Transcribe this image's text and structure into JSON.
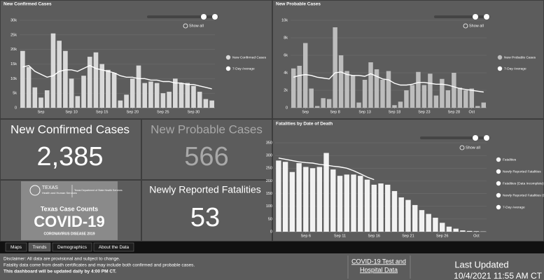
{
  "chart_data": [
    {
      "type": "bar",
      "title": "New Confirmed Cases",
      "zoom_label": "Show all",
      "categories": [
        null,
        null,
        null,
        "Sep",
        null,
        null,
        null,
        null,
        "Sep 10",
        null,
        null,
        null,
        null,
        "Sep 15",
        null,
        null,
        null,
        null,
        "Sep 20",
        null,
        null,
        null,
        null,
        "Sep 25",
        null,
        null,
        null,
        null,
        "Sep 30",
        null,
        null,
        null
      ],
      "series": [
        {
          "name": "New Confirmed Cases",
          "color": "#d9d9d9",
          "values": [
            19500,
            14000,
            7000,
            3500,
            6000,
            25500,
            23000,
            19500,
            10000,
            4000,
            11000,
            17500,
            19000,
            15000,
            13000,
            12000,
            2500,
            4500,
            10000,
            14500,
            8500,
            9000,
            8500,
            5000,
            5500,
            10000,
            8500,
            8500,
            7500,
            5500,
            3000,
            2500
          ]
        },
        {
          "name": "7-Day Average",
          "type": "line",
          "color": "#ffffff",
          "values": [
            14000,
            14500,
            12500,
            11500,
            10500,
            11000,
            12500,
            13000,
            13000,
            12500,
            13500,
            14500,
            13500,
            13000,
            12500,
            12000,
            11000,
            10500,
            10500,
            10000,
            10000,
            9500,
            9500,
            9000,
            9000,
            8500,
            8500,
            8000,
            8000,
            7500,
            7000,
            6500
          ]
        }
      ],
      "ylim": [
        0,
        30000
      ],
      "yticks": [
        0,
        {
          "value": 5000,
          "label": "5k"
        },
        {
          "value": 10000,
          "label": "10k"
        },
        {
          "value": 15000,
          "label": "15k"
        },
        {
          "value": 20000,
          "label": "20k"
        },
        {
          "value": 25000,
          "label": "25k"
        },
        {
          "value": 30000,
          "label": "30k"
        }
      ],
      "grid": true,
      "legend": "right"
    },
    {
      "type": "bar",
      "title": "New Probable Cases",
      "zoom_label": "Show all",
      "categories": [
        null,
        null,
        "Sep",
        null,
        null,
        null,
        null,
        "Sep 8",
        null,
        null,
        null,
        null,
        "Sep 13",
        null,
        null,
        null,
        null,
        "Sep 18",
        null,
        null,
        null,
        null,
        "Sep 23",
        null,
        null,
        null,
        null,
        "Sep 28",
        null,
        null,
        "Oct",
        null,
        null
      ],
      "series": [
        {
          "name": "New Probable Cases",
          "color": "#bdbdbd",
          "values": [
            4500,
            4800,
            7400,
            2200,
            200,
            1100,
            1000,
            9200,
            6000,
            4200,
            3700,
            600,
            3200,
            5200,
            4400,
            3200,
            4200,
            300,
            700,
            2000,
            2600,
            4100,
            2600,
            3900,
            1400,
            3300,
            2000,
            4000,
            2300,
            2000,
            2200,
            200,
            600
          ]
        },
        {
          "name": "7-Day Average",
          "type": "line",
          "color": "#ffffff",
          "values": [
            3500,
            3700,
            3800,
            3700,
            3500,
            3400,
            3300,
            4000,
            4100,
            3800,
            3700,
            3700,
            3600,
            3900,
            3600,
            3300,
            3200,
            2800,
            2600,
            2600,
            2700,
            2900,
            2900,
            2800,
            2700,
            2700,
            2600,
            2400,
            2200,
            2100,
            2000,
            1900,
            1800
          ]
        }
      ],
      "ylim": [
        0,
        10000
      ],
      "yticks": [
        0,
        {
          "value": 2000,
          "label": "2k"
        },
        {
          "value": 4000,
          "label": "4k"
        },
        {
          "value": 6000,
          "label": "6k"
        },
        {
          "value": 8000,
          "label": "8k"
        },
        {
          "value": 10000,
          "label": "10k"
        }
      ],
      "grid": true,
      "legend": "right"
    },
    {
      "type": "bar",
      "title": "Fatalities by Date of Death",
      "zoom_label": "Show all",
      "categories": [
        null,
        null,
        null,
        null,
        "Sep 6",
        null,
        null,
        null,
        null,
        "Sep 11",
        null,
        null,
        null,
        null,
        "Sep 16",
        null,
        null,
        null,
        null,
        "Sep 21",
        null,
        null,
        null,
        null,
        "Sep 26",
        null,
        null,
        null,
        null,
        "Oct",
        null
      ],
      "series": [
        {
          "name": "Fatalities",
          "color": "#f2f2f2",
          "values": [
            280,
            275,
            235,
            270,
            255,
            250,
            255,
            310,
            245,
            220,
            225,
            225,
            220,
            205,
            185,
            190,
            185,
            160,
            135,
            125,
            105,
            85,
            70,
            55,
            35,
            20,
            12,
            5,
            3,
            2,
            1
          ]
        },
        {
          "name": "7-Day Average",
          "type": "line",
          "color": "#ffffff",
          "values": [
            290,
            285,
            280,
            275,
            272,
            270,
            265,
            262,
            258,
            255,
            250,
            240,
            228,
            215,
            205,
            null,
            null,
            null,
            null,
            null,
            null,
            null,
            null,
            null,
            null,
            null,
            null,
            null,
            null,
            null,
            null
          ]
        }
      ],
      "other_legend_entries": [
        {
          "name": "Newly Reported Fatalities",
          "color": "#ffffff"
        },
        {
          "name": "Fatalities (Data Incomplete)",
          "color": "#ffffff"
        },
        {
          "name": "Newly Reported Fatalities (Data Incomplete)",
          "color": "#ffffff"
        }
      ],
      "ylim": [
        0,
        350
      ],
      "yticks": [
        0,
        50,
        100,
        150,
        200,
        250,
        300,
        350
      ],
      "grid": true,
      "legend": "right"
    }
  ],
  "indicators": [
    {
      "label": "New Confirmed Cases",
      "value": "2,385"
    },
    {
      "label": "New Probable Cases",
      "value": "566"
    },
    {
      "label": "Newly Reported Fatalities",
      "value": "53"
    }
  ],
  "logo": {
    "agency": "TEXAS",
    "agency_sub": "Health and Human Services",
    "department": "Texas Department of State Health Services",
    "heading": "Texas Case Counts",
    "title": "COVID-19",
    "subtitle": "CORONAVIRUS DISEASE 2019"
  },
  "tabs": [
    "Maps",
    "Trends",
    "Demographics",
    "About the Data"
  ],
  "footer": {
    "disclaimer": [
      "Disclaimer: All data are provisional and subject to change.",
      "Fatality data come from death certificates and may include both confirmed and probable cases.",
      "This dashboard will be updated daily by 4:00 PM CT."
    ],
    "link": [
      "COVID-19 Test and",
      "Hospital Data"
    ],
    "updated_label": "Last Updated",
    "updated_value": "10/4/2021 11:55 AM CT"
  }
}
